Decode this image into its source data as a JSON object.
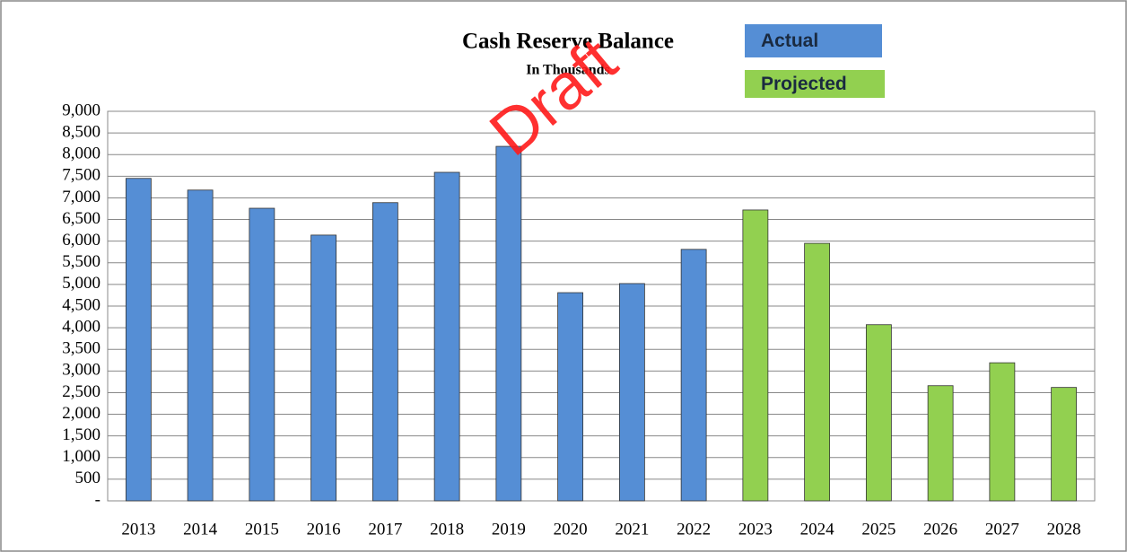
{
  "chart_data": {
    "type": "bar",
    "title": "Cash Reserve Balance",
    "subtitle": "In Thousands",
    "watermark": "Draft",
    "categories": [
      "2013",
      "2014",
      "2015",
      "2016",
      "2017",
      "2018",
      "2019",
      "2020",
      "2021",
      "2022",
      "2023",
      "2024",
      "2025",
      "2026",
      "2027",
      "2028"
    ],
    "series": [
      {
        "name": "Actual",
        "color": "#558ed5",
        "values": [
          7450,
          7180,
          6760,
          6140,
          6890,
          7590,
          8190,
          4810,
          5020,
          5810,
          null,
          null,
          null,
          null,
          null,
          null
        ]
      },
      {
        "name": "Projected",
        "color": "#92d050",
        "values": [
          null,
          null,
          null,
          null,
          null,
          null,
          null,
          null,
          null,
          null,
          6720,
          5950,
          4070,
          2660,
          3190,
          2620
        ]
      }
    ],
    "ylim": [
      0,
      9000
    ],
    "yticks": [
      {
        "value": 0,
        "label": "-"
      },
      500,
      {
        "value": 1000,
        "label": "1,000"
      },
      {
        "value": 1500,
        "label": "1,500"
      },
      {
        "value": 2000,
        "label": "2,000"
      },
      {
        "value": 2500,
        "label": "2,500"
      },
      {
        "value": 3000,
        "label": "3,000"
      },
      {
        "value": 3500,
        "label": "3,500"
      },
      {
        "value": 4000,
        "label": "4,000"
      },
      {
        "value": 4500,
        "label": "4,500"
      },
      {
        "value": 5000,
        "label": "5,000"
      },
      {
        "value": 5500,
        "label": "5,500"
      },
      {
        "value": 6000,
        "label": "6,000"
      },
      {
        "value": 6500,
        "label": "6,500"
      },
      {
        "value": 7000,
        "label": "7,000"
      },
      {
        "value": 7500,
        "label": "7,500"
      },
      {
        "value": 8000,
        "label": "8,000"
      },
      {
        "value": 8500,
        "label": "8,500"
      },
      {
        "value": 9000,
        "label": "9,000"
      }
    ],
    "grid": true
  }
}
